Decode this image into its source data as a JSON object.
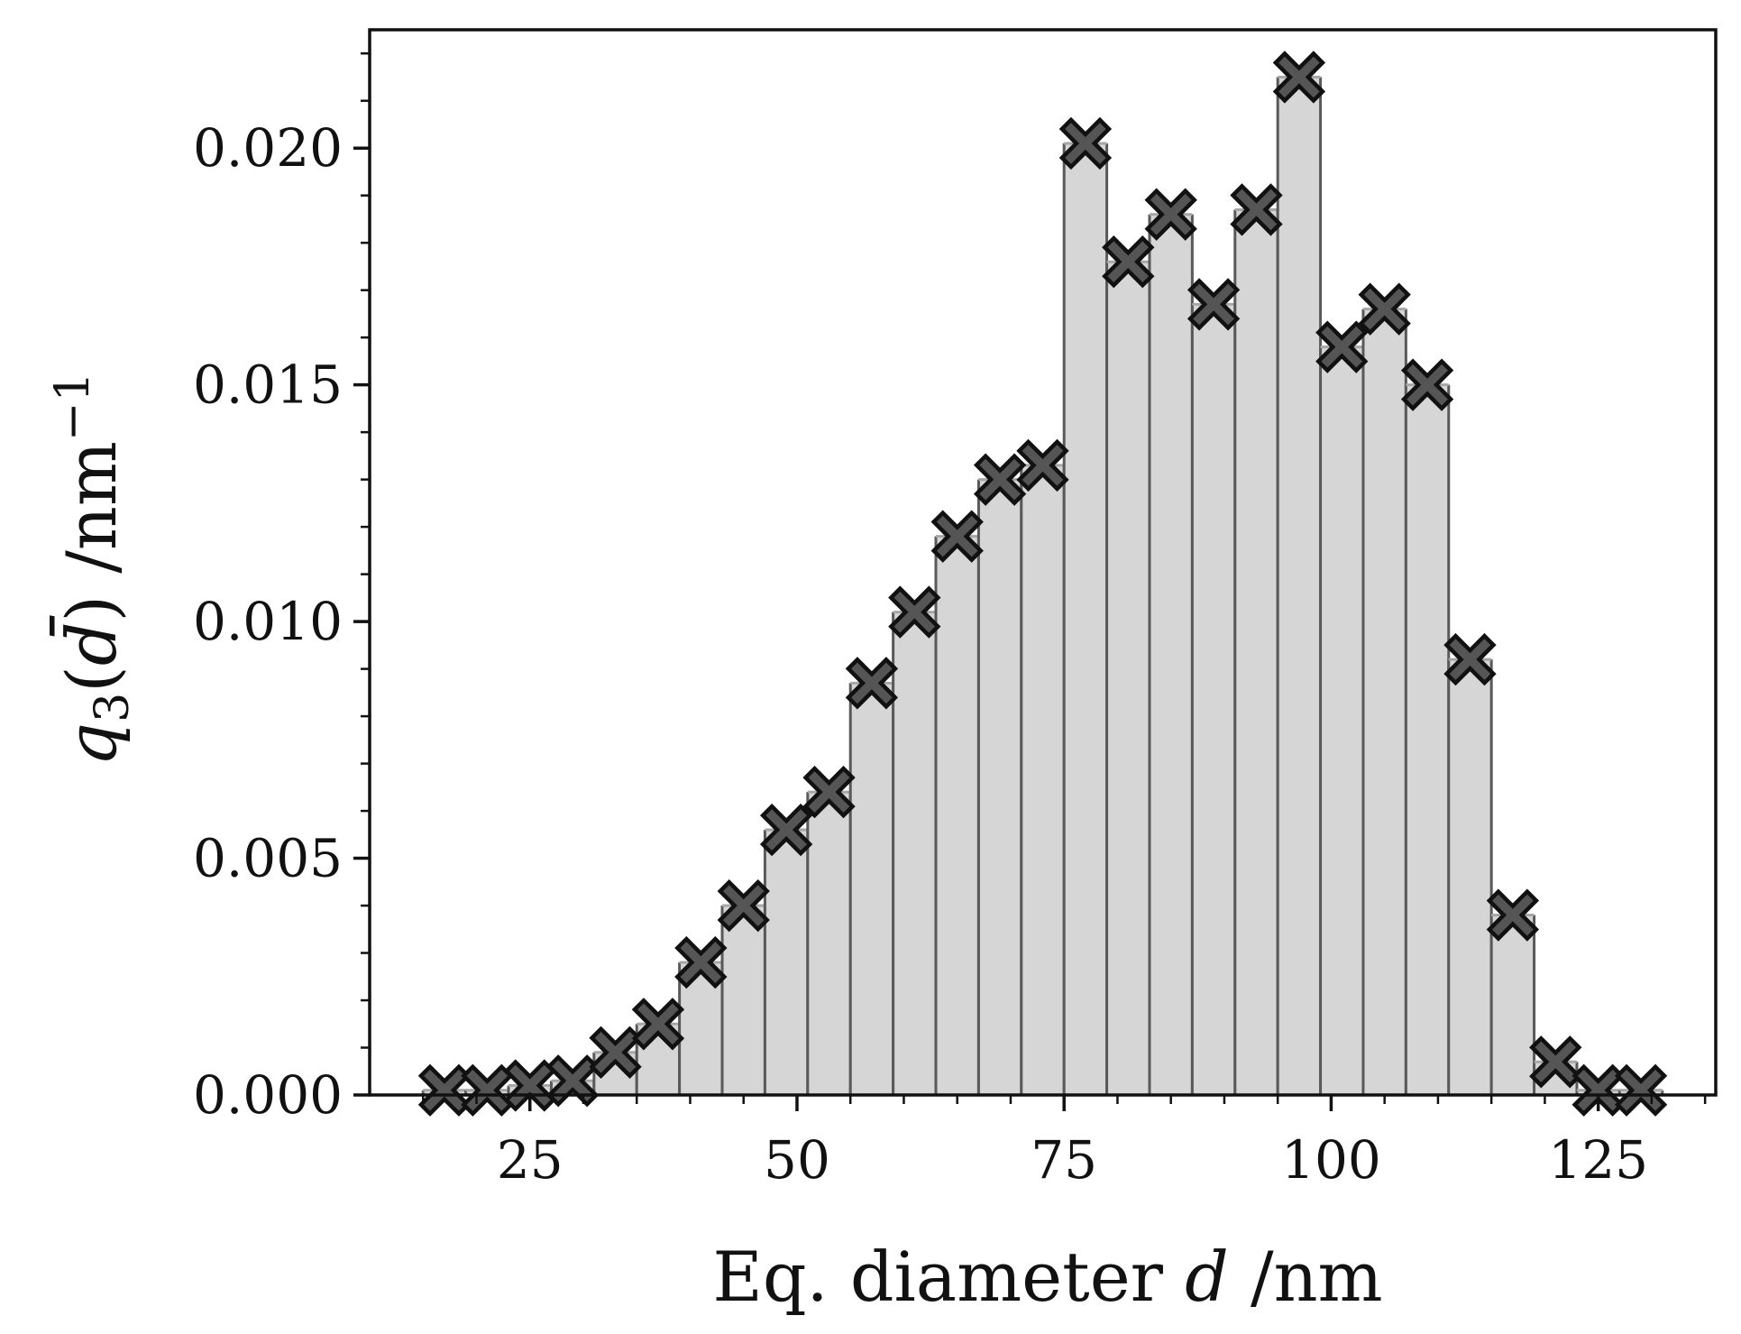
{
  "chart_data": {
    "type": "bar",
    "title": "",
    "xlabel": "Eq. diameter d /nm",
    "ylabel": "q3(d̄) /nm⁻¹",
    "xlim": [
      10,
      136
    ],
    "ylim": [
      0,
      0.0225
    ],
    "x_ticks": [
      25,
      50,
      75,
      100,
      125
    ],
    "y_ticks": [
      "0.000",
      "0.005",
      "0.010",
      "0.015",
      "0.020"
    ],
    "bin_width": 4,
    "x": [
      17,
      21,
      25,
      29,
      33,
      37,
      41,
      45,
      49,
      53,
      57,
      61,
      65,
      69,
      73,
      77,
      81,
      85,
      89,
      93,
      97,
      101,
      105,
      109,
      113,
      117,
      121,
      125,
      129
    ],
    "values": [
      0.0001,
      0.0001,
      0.0002,
      0.0003,
      0.0009,
      0.0015,
      0.0028,
      0.004,
      0.0056,
      0.0064,
      0.0087,
      0.0102,
      0.0118,
      0.013,
      0.0133,
      0.0201,
      0.0176,
      0.0186,
      0.0167,
      0.0187,
      0.0215,
      0.0158,
      0.0166,
      0.015,
      0.0092,
      0.0038,
      0.0007,
      0.0001,
      0.0001
    ],
    "grid": false,
    "legend": "none",
    "colors": {
      "bar_fill": "#d6d6d6",
      "bar_edge": "#595959",
      "bar_top_edge": "#a6a6a6",
      "marker_fill": "#555555",
      "marker_edge": "#111111"
    }
  }
}
